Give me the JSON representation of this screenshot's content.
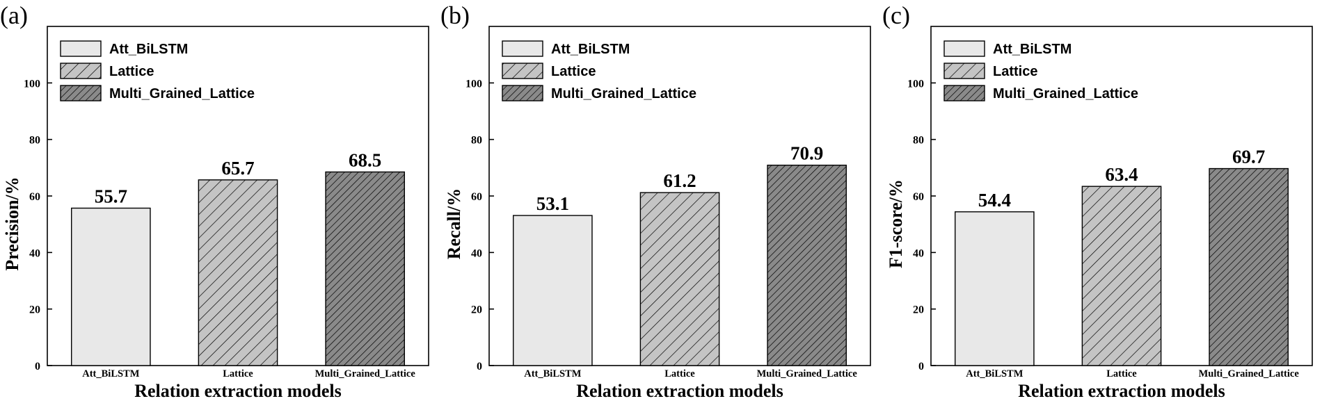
{
  "colors": {
    "att_bilstm_fill": "#e8e8e8",
    "lattice_fill": "#c4c4c4",
    "multi_fill": "#8a8a8a",
    "hatch_line": "#000000",
    "axis": "#000000"
  },
  "chart_data": [
    {
      "type": "bar",
      "panel_label": "(a)",
      "categories": [
        "Att_BiLSTM",
        "Lattice",
        "Multi_Grained_Lattice"
      ],
      "values": [
        55.7,
        65.7,
        68.5
      ],
      "value_labels": [
        "55.7",
        "65.7",
        "68.5"
      ],
      "ylabel": "Precision/%",
      "xlabel": "Relation extraction models",
      "ylim": [
        0,
        120
      ],
      "yticks": [
        0,
        20,
        40,
        60,
        80,
        100
      ],
      "legend": [
        "Att_BiLSTM",
        "Lattice",
        "Multi_Grained_Lattice"
      ],
      "legend_position": "top-left"
    },
    {
      "type": "bar",
      "panel_label": "(b)",
      "categories": [
        "Att_BiLSTM",
        "Lattice",
        "Multi_Grained_Lattice"
      ],
      "values": [
        53.1,
        61.2,
        70.9
      ],
      "value_labels": [
        "53.1",
        "61.2",
        "70.9"
      ],
      "ylabel": "Recall/%",
      "xlabel": "Relation extraction models",
      "ylim": [
        0,
        120
      ],
      "yticks": [
        0,
        20,
        40,
        60,
        80,
        100
      ],
      "legend": [
        "Att_BiLSTM",
        "Lattice",
        "Multi_Grained_Lattice"
      ],
      "legend_position": "top-left"
    },
    {
      "type": "bar",
      "panel_label": "(c)",
      "categories": [
        "Att_BiLSTM",
        "Lattice",
        "Multi_Grained_Lattice"
      ],
      "values": [
        54.4,
        63.4,
        69.7
      ],
      "value_labels": [
        "54.4",
        "63.4",
        "69.7"
      ],
      "ylabel": "F1-score/%",
      "xlabel": "Relation extraction models",
      "ylim": [
        0,
        120
      ],
      "yticks": [
        0,
        20,
        40,
        60,
        80,
        100
      ],
      "legend": [
        "Att_BiLSTM",
        "Lattice",
        "Multi_Grained_Lattice"
      ],
      "legend_position": "top-left"
    }
  ]
}
